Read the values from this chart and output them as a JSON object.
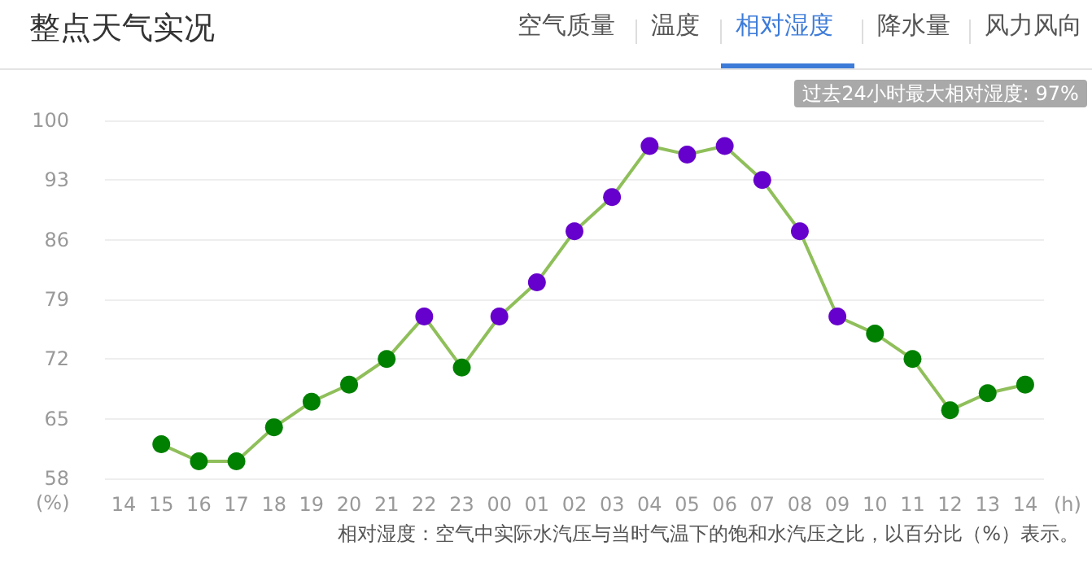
{
  "chart_data": {
    "type": "line",
    "title": "整点天气实况",
    "annotations": [
      "空气质量",
      "温度",
      "相对湿度",
      "降水量",
      "风力风向",
      "过去24小时最大相对湿度: 97%",
      "相对湿度：空气中实际水汽压与当时气温下的饱和水汽压之比，以百分比（%）表示。"
    ],
    "categories": [
      "14",
      "15",
      "16",
      "17",
      "18",
      "19",
      "20",
      "21",
      "22",
      "23",
      "00",
      "01",
      "02",
      "03",
      "04",
      "05",
      "06",
      "07",
      "08",
      "09",
      "10",
      "11",
      "12",
      "13",
      "14"
    ],
    "series": [
      {
        "color": "#8fbf5a",
        "colors": [
          null,
          "#008000",
          "#008000",
          "#008000",
          "#008000",
          "#008000",
          "#008000",
          "#008000",
          "#6600cc",
          "#008000",
          "#6600cc",
          "#6600cc",
          "#6600cc",
          "#6600cc",
          "#6600cc",
          "#6600cc",
          "#6600cc",
          "#6600cc",
          "#6600cc",
          "#6600cc",
          "#008000",
          "#008000",
          "#008000",
          "#008000",
          "#008000"
        ],
        "values": [
          null,
          62,
          60,
          60,
          64,
          67,
          69,
          72,
          77,
          71,
          77,
          81,
          87,
          91,
          97,
          96,
          97,
          93,
          87,
          77,
          75,
          72,
          66,
          68,
          69
        ]
      }
    ],
    "xlabel": "(h)",
    "ylabel": "(%)",
    "ylim": [
      58,
      100
    ],
    "yticks": [
      58,
      65,
      72,
      79,
      86,
      93,
      100
    ],
    "grid": "y",
    "marker": "circle",
    "line_style": "solid"
  }
}
